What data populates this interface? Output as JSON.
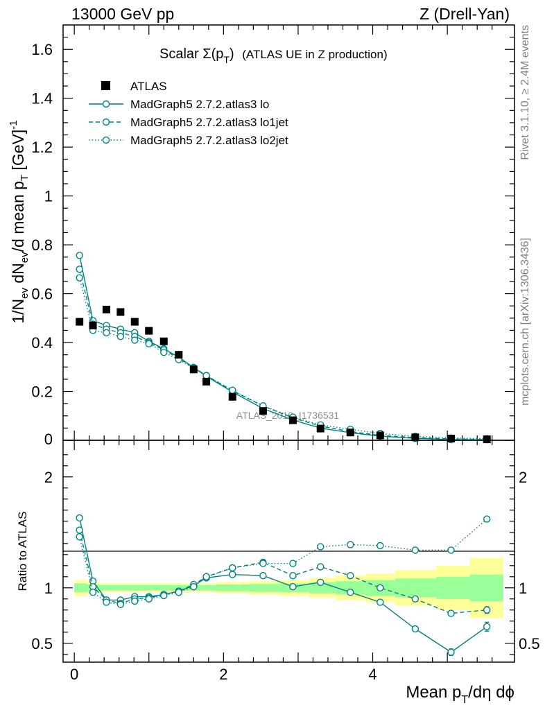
{
  "header": {
    "left": "13000 GeV pp",
    "right": "Z (Drell-Yan)"
  },
  "side_labels": {
    "rivet": "Rivet 3.1.10, ≥ 2.4M events",
    "mcplots": "mcplots.cern.ch [arXiv:1306.3436]"
  },
  "watermark": "ATLAS_2019_I1736531",
  "plot_title": {
    "main": "Scalar Σ(p",
    "sub": "T",
    "close": ")",
    "suffix": "(ATLAS UE in Z production)"
  },
  "ylabel_main": {
    "p1": "1/N",
    "s1": "ev",
    "p2": " dN",
    "s2": "ev",
    "p3": "/d mean p",
    "s3": "T",
    "p4": " [GeV]",
    "sup": "-1"
  },
  "ylabel_ratio": "Ratio to ATLAS",
  "xlabel": {
    "p1": "Mean p",
    "sub": "T",
    "p2": "/dη dϕ"
  },
  "legend": [
    {
      "label": "ATLAS",
      "style": "data"
    },
    {
      "label": "MadGraph5 2.7.2.atlas3 lo",
      "style": "solid"
    },
    {
      "label": "MadGraph5 2.7.2.atlas3 lo1jet",
      "style": "dashed"
    },
    {
      "label": "MadGraph5 2.7.2.atlas3 lo2jet",
      "style": "dotted"
    }
  ],
  "colors": {
    "mc": "#008080",
    "data": "#000000",
    "band_outer": "#ffff99",
    "band_inner": "#99ff99"
  },
  "chart_data": {
    "type": "line",
    "x": [
      0.07,
      0.25,
      0.43,
      0.62,
      0.81,
      1.0,
      1.2,
      1.4,
      1.6,
      1.77,
      2.12,
      2.53,
      2.93,
      3.3,
      3.7,
      4.1,
      4.57,
      5.05,
      5.53
    ],
    "bin_edges": [
      0.0,
      0.17,
      0.34,
      0.52,
      0.71,
      0.9,
      1.1,
      1.3,
      1.5,
      1.7,
      1.9,
      2.35,
      2.75,
      3.15,
      3.5,
      3.9,
      4.3,
      4.85,
      5.3,
      5.75
    ],
    "main": {
      "xlim": [
        -0.15,
        5.9
      ],
      "ylim": [
        0,
        1.7
      ],
      "xticks": [
        0,
        2,
        4
      ],
      "yticks": [
        0.2,
        0.4,
        0.6,
        0.8,
        1,
        1.2,
        1.4,
        1.6
      ],
      "ytick_labels": [
        "0.2",
        "0.4",
        "0.6",
        "0.8",
        "1",
        "1.2",
        "1.4",
        "1.6"
      ],
      "zero_label": "0",
      "series": [
        {
          "name": "ATLAS",
          "values": [
            0.485,
            0.47,
            0.535,
            0.525,
            0.485,
            0.448,
            0.405,
            0.35,
            0.29,
            0.24,
            0.178,
            0.12,
            0.082,
            0.048,
            0.032,
            0.02,
            0.012,
            0.007,
            0.004
          ]
        },
        {
          "name": "MadGraph5 2.7.2.atlas3 lo",
          "values": [
            0.757,
            0.49,
            0.47,
            0.455,
            0.44,
            0.405,
            0.375,
            0.34,
            0.298,
            0.262,
            0.198,
            0.13,
            0.083,
            0.05,
            0.031,
            0.017,
            0.008,
            0.003,
            0.0026
          ]
        },
        {
          "name": "MadGraph5 2.7.2.atlas3 lo1jet",
          "values": [
            0.7,
            0.475,
            0.455,
            0.44,
            0.425,
            0.4,
            0.37,
            0.335,
            0.298,
            0.265,
            0.203,
            0.14,
            0.092,
            0.058,
            0.036,
            0.02,
            0.0108,
            0.0054,
            0.0032
          ]
        },
        {
          "name": "MadGraph5 2.7.2.atlas3 lo2jet",
          "values": [
            0.665,
            0.45,
            0.44,
            0.425,
            0.41,
            0.395,
            0.36,
            0.33,
            0.295,
            0.265,
            0.205,
            0.141,
            0.095,
            0.063,
            0.045,
            0.028,
            0.016,
            0.0095,
            0.0065
          ]
        }
      ]
    },
    "ratio": {
      "ylim": [
        0.33,
        2.33
      ],
      "yticks": [
        0.5,
        1,
        2
      ],
      "ytick_labels": [
        "0.5",
        "1",
        "2"
      ],
      "xtick_labels": [
        "0",
        "2",
        "4"
      ],
      "band_inner": [
        0.04,
        0.03,
        0.025,
        0.025,
        0.025,
        0.025,
        0.025,
        0.025,
        0.025,
        0.025,
        0.03,
        0.035,
        0.04,
        0.05,
        0.06,
        0.07,
        0.085,
        0.1,
        0.12
      ],
      "band_outer": [
        0.07,
        0.05,
        0.04,
        0.04,
        0.04,
        0.04,
        0.04,
        0.04,
        0.04,
        0.04,
        0.05,
        0.06,
        0.07,
        0.09,
        0.11,
        0.13,
        0.16,
        0.2,
        0.27
      ],
      "series": [
        {
          "name": "MadGraph5 2.7.2.atlas3 lo",
          "values": [
            1.63,
            1.06,
            0.89,
            0.89,
            0.92,
            0.92,
            0.94,
            0.97,
            1.02,
            1.09,
            1.12,
            1.11,
            1.01,
            1.05,
            0.96,
            0.87,
            0.63,
            0.42,
            0.65
          ],
          "errors": [
            0.01,
            0.01,
            0.01,
            0.01,
            0.01,
            0.01,
            0.01,
            0.01,
            0.01,
            0.01,
            0.01,
            0.01,
            0.01,
            0.01,
            0.01,
            0.01,
            0.02,
            0.03,
            0.04
          ]
        },
        {
          "name": "MadGraph5 2.7.2.atlas3 lo1jet",
          "values": [
            1.52,
            1.01,
            0.89,
            0.86,
            0.9,
            0.91,
            0.94,
            0.97,
            1.03,
            1.1,
            1.18,
            1.23,
            1.11,
            1.19,
            1.11,
            1.0,
            0.9,
            0.77,
            0.8
          ],
          "errors": [
            0.01,
            0.01,
            0.01,
            0.01,
            0.01,
            0.01,
            0.01,
            0.01,
            0.01,
            0.01,
            0.01,
            0.01,
            0.01,
            0.01,
            0.01,
            0.01,
            0.02,
            0.02,
            0.03
          ]
        },
        {
          "name": "MadGraph5 2.7.2.atlas3 lo2jet",
          "values": [
            1.46,
            0.96,
            0.87,
            0.85,
            0.88,
            0.9,
            0.93,
            0.96,
            1.01,
            1.1,
            1.18,
            1.22,
            1.22,
            1.37,
            1.39,
            1.38,
            1.34,
            1.34,
            1.62
          ],
          "errors": [
            0.01,
            0.01,
            0.01,
            0.01,
            0.01,
            0.01,
            0.01,
            0.01,
            0.01,
            0.01,
            0.01,
            0.01,
            0.01,
            0.01,
            0.01,
            0.01,
            0.01,
            0.02,
            0.02
          ]
        }
      ]
    }
  }
}
